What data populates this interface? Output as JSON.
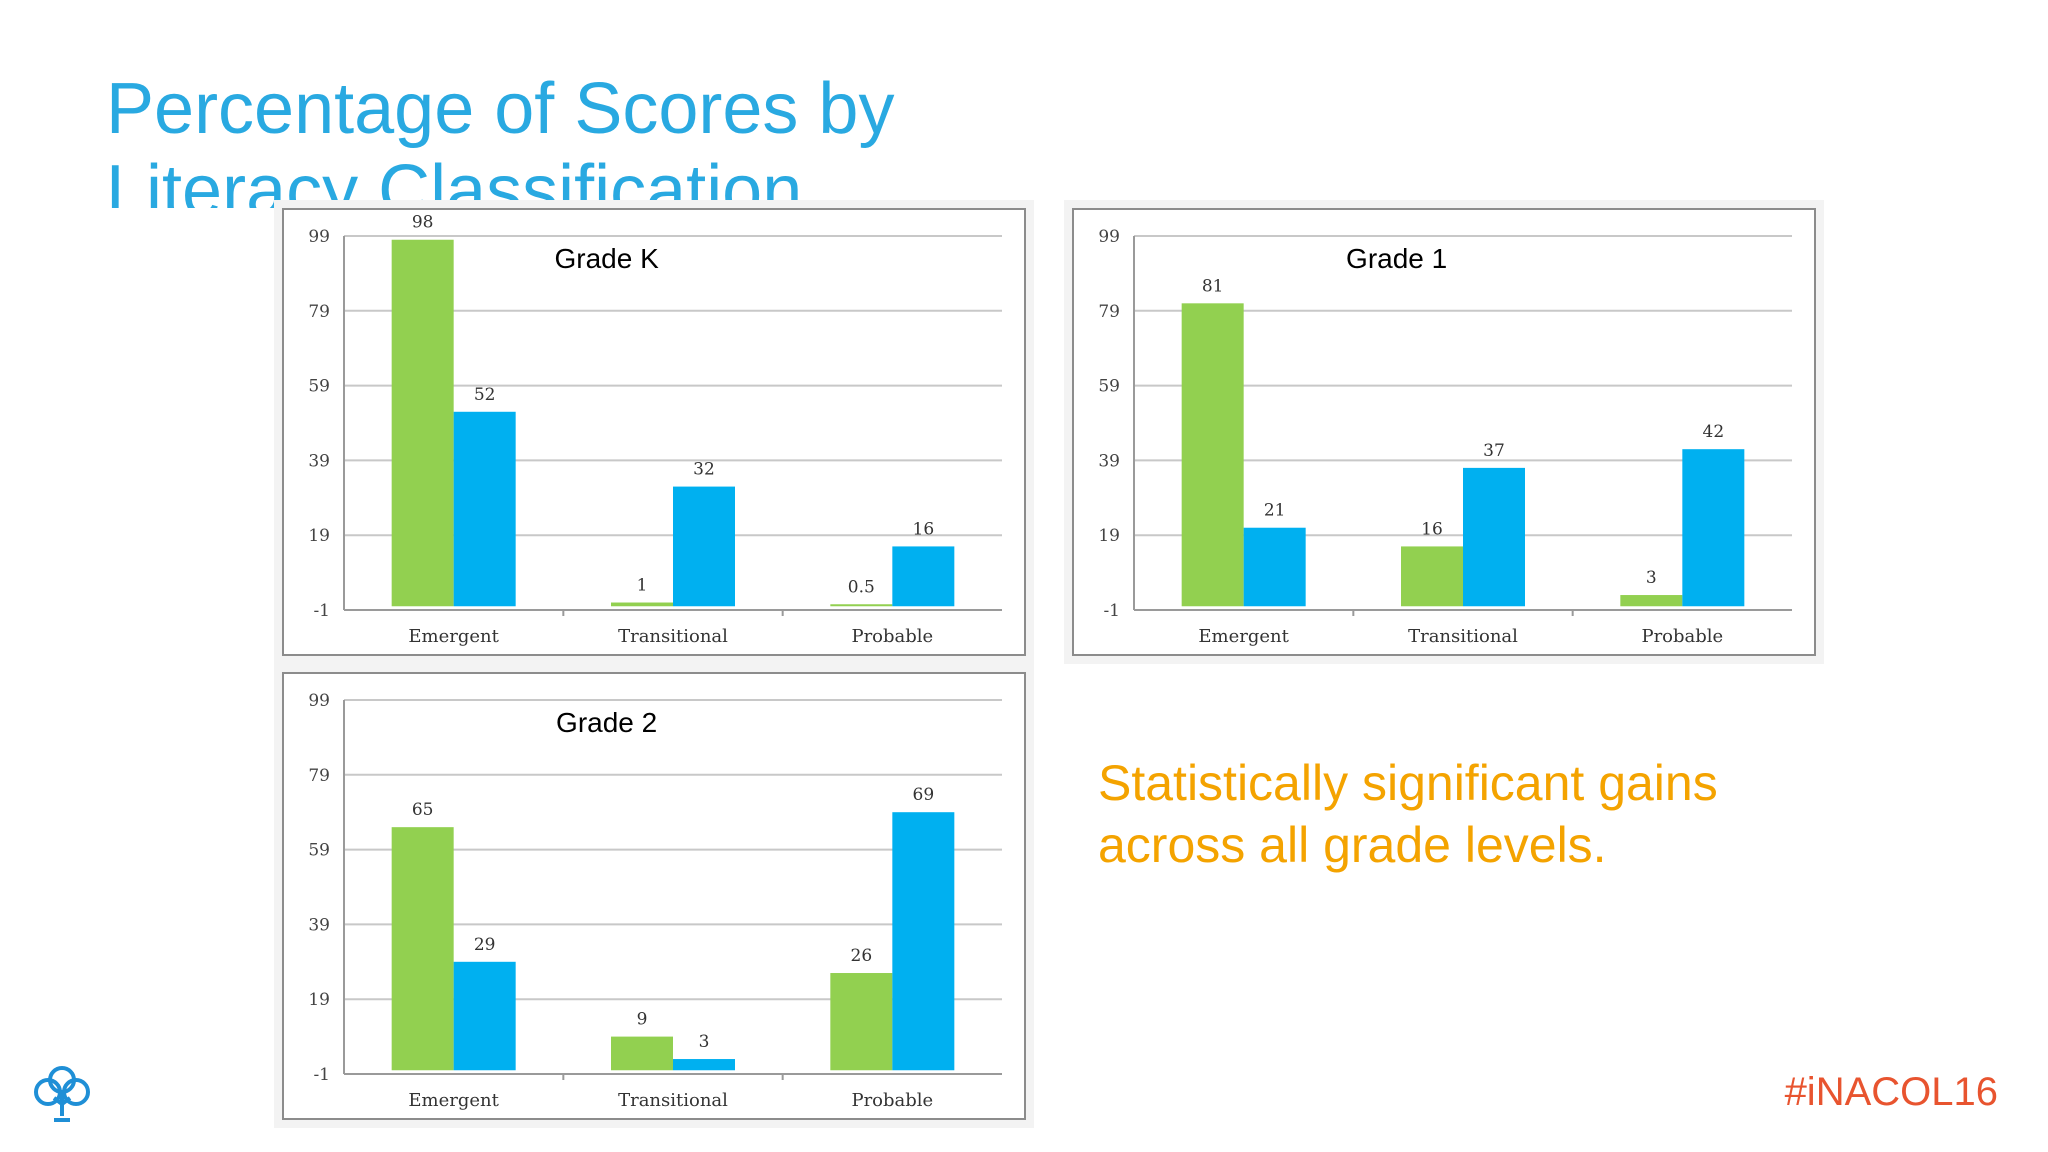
{
  "slide": {
    "title": "Percentage of Scores by Literacy Classification",
    "callout_line1": "Statistically significant gains",
    "callout_line2": "across all grade levels.",
    "hashtag": "#iNACOL16",
    "logo_icon": "tree-logo-icon"
  },
  "colors": {
    "title": "#29a9e1",
    "series_green": "#92d050",
    "series_blue": "#00b0f0",
    "callout": "#f4a300",
    "hashtag": "#e8542f"
  },
  "chart_data": [
    {
      "type": "bar",
      "title": "Grade K",
      "categories": [
        "Emergent",
        "Transitional",
        "Probable"
      ],
      "series": [
        {
          "values": [
            98,
            1,
            0.5
          ],
          "color": "#92d050"
        },
        {
          "values": [
            52,
            32,
            16
          ],
          "color": "#00b0f0"
        }
      ],
      "value_labels": [
        [
          "98",
          "1",
          "0.5"
        ],
        [
          "52",
          "32",
          "16"
        ]
      ],
      "yticks": [
        99,
        79,
        59,
        39,
        19,
        -1
      ],
      "ylim": [
        -1,
        99
      ],
      "grid": true
    },
    {
      "type": "bar",
      "title": "Grade 1",
      "categories": [
        "Emergent",
        "Transitional",
        "Probable"
      ],
      "series": [
        {
          "values": [
            81,
            16,
            3
          ],
          "color": "#92d050"
        },
        {
          "values": [
            21,
            37,
            42
          ],
          "color": "#00b0f0"
        }
      ],
      "value_labels": [
        [
          "81",
          "16",
          "3"
        ],
        [
          "21",
          "37",
          "42"
        ]
      ],
      "yticks": [
        99,
        79,
        59,
        39,
        19,
        -1
      ],
      "ylim": [
        -1,
        99
      ],
      "grid": true
    },
    {
      "type": "bar",
      "title": "Grade 2",
      "categories": [
        "Emergent",
        "Transitional",
        "Probable"
      ],
      "series": [
        {
          "values": [
            65,
            9,
            26
          ],
          "color": "#92d050"
        },
        {
          "values": [
            29,
            3,
            69
          ],
          "color": "#00b0f0"
        }
      ],
      "value_labels": [
        [
          "65",
          "9",
          "26"
        ],
        [
          "29",
          "3",
          "69"
        ]
      ],
      "yticks": [
        99,
        79,
        59,
        39,
        19,
        -1
      ],
      "ylim": [
        -1,
        99
      ],
      "grid": true
    }
  ]
}
